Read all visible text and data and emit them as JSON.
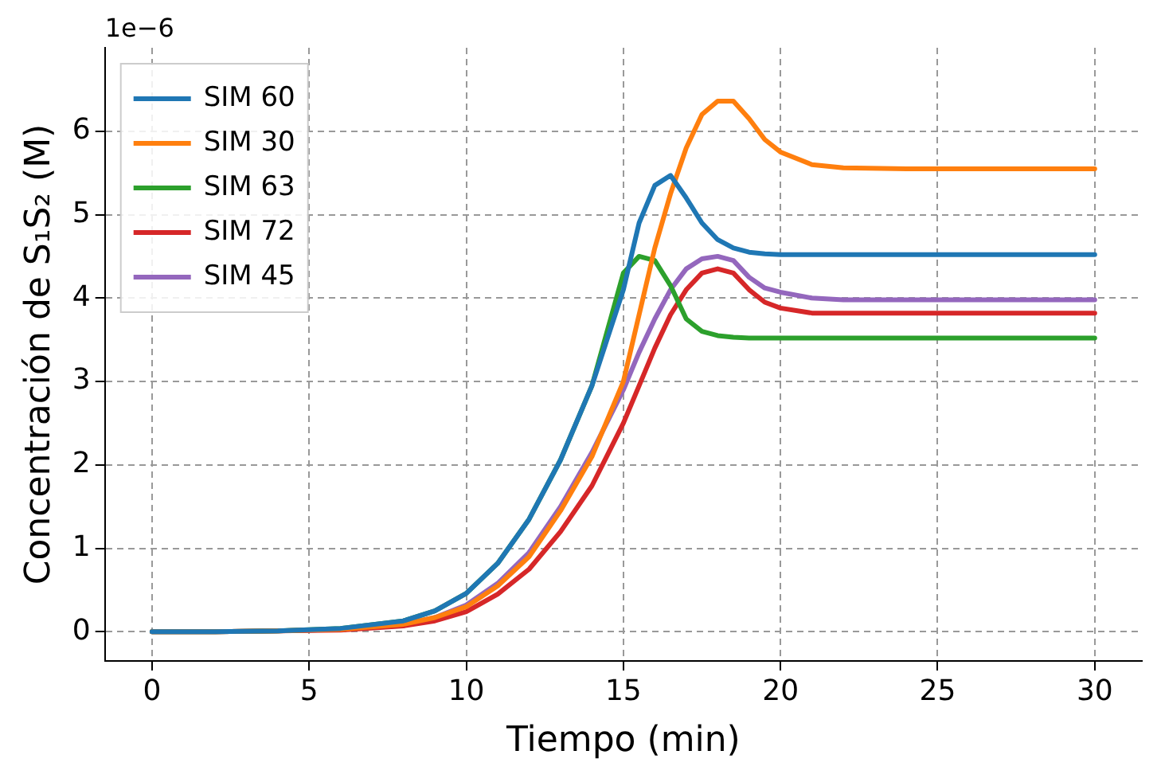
{
  "chart_data": {
    "type": "line",
    "xlabel": "Tiempo (min)",
    "ylabel": "Concentración de S₁S₂ (M)",
    "annotations": [
      "1e−6"
    ],
    "x": [
      0,
      2,
      4,
      6,
      8,
      9,
      10,
      11,
      12,
      13,
      14,
      15,
      15.5,
      16,
      16.5,
      17,
      17.5,
      18,
      18.5,
      19,
      19.5,
      20,
      21,
      22,
      24,
      26,
      28,
      30
    ],
    "series": [
      {
        "name": "SIM 60",
        "color": "#1f77b4",
        "values": [
          0,
          0,
          0.01,
          0.04,
          0.13,
          0.25,
          0.46,
          0.82,
          1.35,
          2.06,
          2.95,
          4.1,
          4.9,
          5.35,
          5.47,
          5.2,
          4.9,
          4.7,
          4.6,
          4.55,
          4.53,
          4.52,
          4.52,
          4.52,
          4.52,
          4.52,
          4.52,
          4.52
        ]
      },
      {
        "name": "SIM 30",
        "color": "#ff7f0e",
        "values": [
          0,
          0,
          0.01,
          0.03,
          0.09,
          0.17,
          0.3,
          0.55,
          0.9,
          1.45,
          2.1,
          3,
          3.8,
          4.6,
          5.25,
          5.8,
          6.2,
          6.36,
          6.36,
          6.15,
          5.9,
          5.75,
          5.6,
          5.56,
          5.55,
          5.55,
          5.55,
          5.55
        ]
      },
      {
        "name": "SIM 63",
        "color": "#2ca02c",
        "values": [
          0,
          0,
          0.01,
          0.04,
          0.13,
          0.25,
          0.46,
          0.82,
          1.35,
          2.06,
          2.95,
          4.3,
          4.5,
          4.45,
          4.15,
          3.75,
          3.6,
          3.55,
          3.53,
          3.52,
          3.52,
          3.52,
          3.52,
          3.52,
          3.52,
          3.52,
          3.52,
          3.52
        ]
      },
      {
        "name": "SIM 72",
        "color": "#d62728",
        "values": [
          0,
          0,
          0.01,
          0.02,
          0.07,
          0.13,
          0.24,
          0.45,
          0.75,
          1.2,
          1.75,
          2.5,
          2.95,
          3.4,
          3.8,
          4.1,
          4.3,
          4.35,
          4.3,
          4.1,
          3.95,
          3.88,
          3.82,
          3.82,
          3.82,
          3.82,
          3.82,
          3.82
        ]
      },
      {
        "name": "SIM 45",
        "color": "#9467bd",
        "values": [
          0,
          0,
          0.01,
          0.03,
          0.09,
          0.17,
          0.32,
          0.58,
          0.95,
          1.5,
          2.15,
          2.9,
          3.35,
          3.75,
          4.1,
          4.35,
          4.47,
          4.5,
          4.45,
          4.25,
          4.12,
          4.07,
          4,
          3.98,
          3.98,
          3.98,
          3.98,
          3.98
        ]
      }
    ],
    "xlim": [
      -1.5,
      31.5
    ],
    "xticks": [
      0,
      5,
      10,
      15,
      20,
      25,
      30
    ],
    "ylim": [
      -0.35,
      7
    ],
    "yticks": [
      0,
      1,
      2,
      3,
      4,
      5,
      6
    ],
    "grid": true,
    "legend": "top left",
    "marker": "none",
    "line_style": "solid"
  }
}
